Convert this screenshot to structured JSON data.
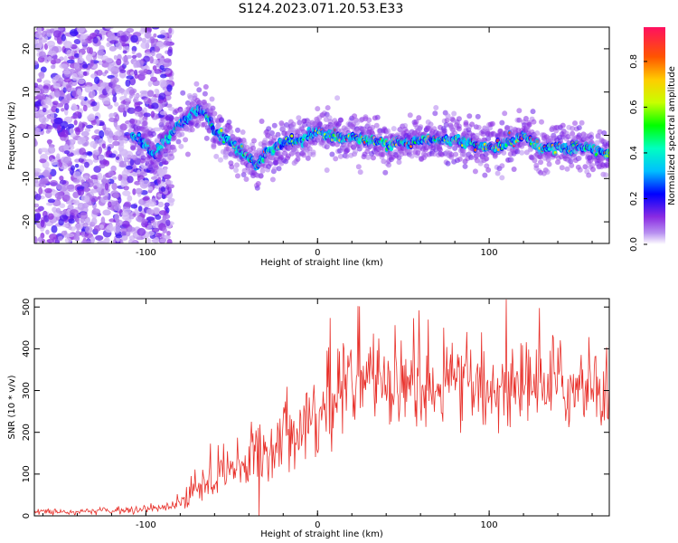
{
  "title": "S124.2023.071.20.53.E33",
  "colorbar": {
    "label": "Normalized spectral amplitude",
    "ticks": [
      "0.0",
      "0.2",
      "0.4",
      "0.6",
      "0.8"
    ],
    "tick_values": [
      0.0,
      0.2,
      0.4,
      0.6,
      0.8
    ],
    "range": [
      0,
      0.95
    ],
    "stops": [
      {
        "v": 0.0,
        "color": "#ffffff"
      },
      {
        "v": 0.05,
        "color": "#b890f0"
      },
      {
        "v": 0.12,
        "color": "#8a2be2"
      },
      {
        "v": 0.22,
        "color": "#0000ff"
      },
      {
        "v": 0.32,
        "color": "#00bfff"
      },
      {
        "v": 0.42,
        "color": "#00ffc0"
      },
      {
        "v": 0.52,
        "color": "#00ff00"
      },
      {
        "v": 0.62,
        "color": "#c8ff00"
      },
      {
        "v": 0.72,
        "color": "#ffcc00"
      },
      {
        "v": 0.82,
        "color": "#ff5500"
      },
      {
        "v": 0.95,
        "color": "#ff1060"
      }
    ]
  },
  "chart_data": [
    {
      "type": "heatmap",
      "title": "S124.2023.071.20.53.E33",
      "xlabel": "Height of straight line (km)",
      "ylabel": "Frequency (Hz)",
      "xlim": [
        -165,
        170
      ],
      "ylim": [
        -25,
        25
      ],
      "xticks": [
        -100,
        0,
        100
      ],
      "xtick_labels": [
        "-100",
        "0",
        "100"
      ],
      "yticks": [
        -20,
        -10,
        0,
        10,
        20
      ],
      "ytick_labels": [
        "-20",
        "-10",
        "0",
        "10",
        "20"
      ],
      "ridge": {
        "x": [
          -108,
          -100,
          -95,
          -90,
          -85,
          -80,
          -75,
          -70,
          -65,
          -60,
          -55,
          -50,
          -45,
          -40,
          -35,
          -30,
          -25,
          -20,
          -15,
          -10,
          -5,
          0,
          5,
          10,
          15,
          20,
          25,
          30,
          40,
          50,
          60,
          70,
          80,
          90,
          100,
          110,
          115,
          120,
          130,
          140,
          150,
          160,
          168
        ],
        "y": [
          0,
          -2,
          -5,
          -2,
          0,
          3,
          4,
          6,
          5,
          1,
          0,
          -2,
          -4,
          -5,
          -7,
          -4,
          -3,
          -2,
          -1,
          -1,
          0,
          1,
          0,
          0,
          -1,
          0,
          -1,
          -1,
          -2,
          -2,
          -1,
          -1,
          -1,
          -2,
          -3,
          -2,
          -1,
          0,
          -3,
          -3,
          -3,
          -3,
          -4
        ]
      },
      "noise_region_x": [
        -165,
        -85
      ]
    },
    {
      "type": "line",
      "xlabel": "Height of straight line (km)",
      "ylabel": "SNR (10 * v/v)",
      "xlim": [
        -165,
        170
      ],
      "ylim": [
        0,
        520
      ],
      "xticks": [
        -100,
        0,
        100
      ],
      "xtick_labels": [
        "-100",
        "0",
        "100"
      ],
      "yticks": [
        0,
        100,
        200,
        300,
        400,
        500
      ],
      "ytick_labels": [
        "0",
        "100",
        "200",
        "300",
        "400",
        "500"
      ],
      "series": [
        {
          "color": "#e8302a",
          "envelope": {
            "x": [
              -165,
              -140,
              -120,
              -100,
              -90,
              -80,
              -70,
              -60,
              -50,
              -40,
              -30,
              -20,
              -10,
              0,
              5,
              10,
              15,
              20,
              30,
              40,
              50,
              60,
              80,
              100,
              120,
              140,
              150,
              160,
              170
            ],
            "y": [
              10,
              10,
              12,
              15,
              20,
              40,
              60,
              90,
              100,
              130,
              160,
              200,
              220,
              250,
              230,
              270,
              300,
              320,
              330,
              320,
              330,
              310,
              310,
              300,
              310,
              320,
              300,
              310,
              300
            ]
          },
          "spread": [
            6,
            6,
            6,
            8,
            10,
            25,
            35,
            50,
            55,
            70,
            80,
            80,
            80,
            90,
            95,
            90,
            90,
            90,
            90,
            90,
            90,
            90,
            85,
            85,
            90,
            95,
            90,
            90,
            90
          ]
        }
      ]
    }
  ],
  "panels": {
    "top": {
      "xlabel": "Height of straight line (km)",
      "ylabel": "Frequency (Hz)"
    },
    "bottom": {
      "xlabel": "Height of straight line (km)",
      "ylabel": "SNR (10 * v/v)"
    }
  }
}
